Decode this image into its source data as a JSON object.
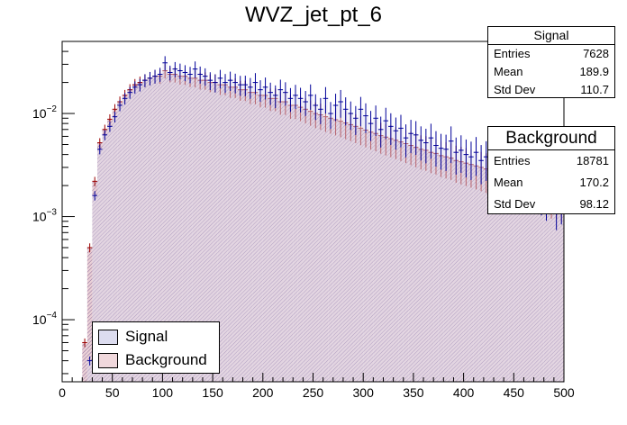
{
  "chart_data": {
    "type": "histogram",
    "title": "WVZ_jet_pt_6",
    "xlabel": "",
    "ylabel": "",
    "xlim": [
      0,
      500
    ],
    "ylim": [
      2.5e-05,
      0.05
    ],
    "yscale": "log",
    "x_ticks": [
      "0",
      "50",
      "100",
      "150",
      "200",
      "250",
      "300",
      "350",
      "400",
      "450",
      "500"
    ],
    "y_ticks": [
      {
        "value": 0.0001,
        "base": "10",
        "exp": "−4"
      },
      {
        "value": 0.001,
        "base": "10",
        "exp": "−3"
      },
      {
        "value": 0.01,
        "base": "10",
        "exp": "−2"
      }
    ],
    "bin_width": 5,
    "bin_start": 0,
    "series": [
      {
        "name": "Signal",
        "color": "#000099",
        "fill": "#dcdcef",
        "values": [
          0,
          0,
          0,
          0,
          0,
          4e-05,
          0.0016,
          0.0045,
          0.0062,
          0.0075,
          0.0093,
          0.012,
          0.014,
          0.016,
          0.018,
          0.019,
          0.021,
          0.022,
          0.023,
          0.024,
          0.031,
          0.025,
          0.027,
          0.026,
          0.025,
          0.024,
          0.027,
          0.024,
          0.023,
          0.021,
          0.02,
          0.022,
          0.02,
          0.021,
          0.02,
          0.019,
          0.019,
          0.018,
          0.02,
          0.017,
          0.018,
          0.016,
          0.015,
          0.017,
          0.016,
          0.014,
          0.015,
          0.014,
          0.013,
          0.015,
          0.012,
          0.011,
          0.014,
          0.01,
          0.012,
          0.013,
          0.011,
          0.01,
          0.009,
          0.011,
          0.0095,
          0.008,
          0.009,
          0.007,
          0.0085,
          0.0075,
          0.0068,
          0.0072,
          0.0058,
          0.0064,
          0.0062,
          0.0055,
          0.0052,
          0.0058,
          0.0049,
          0.0046,
          0.0045,
          0.0054,
          0.0042,
          0.0044,
          0.004,
          0.0038,
          0.0042,
          0.0035,
          0.0038,
          0.0032,
          0.0034,
          0.003,
          0.0032,
          0.0028,
          0.0026,
          0.0024,
          0.0029,
          0.0022,
          0.0024,
          0.0019,
          0.0017,
          0.0023,
          0.0014,
          0.0016
        ]
      },
      {
        "name": "Background",
        "color": "#990000",
        "fill": "#f0d8dc",
        "values": [
          0,
          0,
          0,
          0,
          6e-05,
          0.0005,
          0.0022,
          0.0052,
          0.007,
          0.0088,
          0.011,
          0.013,
          0.015,
          0.017,
          0.019,
          0.02,
          0.021,
          0.022,
          0.023,
          0.023,
          0.026,
          0.024,
          0.024,
          0.023,
          0.023,
          0.022,
          0.022,
          0.021,
          0.021,
          0.02,
          0.02,
          0.019,
          0.019,
          0.018,
          0.018,
          0.017,
          0.017,
          0.016,
          0.016,
          0.015,
          0.015,
          0.014,
          0.014,
          0.013,
          0.013,
          0.012,
          0.012,
          0.0115,
          0.011,
          0.0105,
          0.01,
          0.0097,
          0.0093,
          0.009,
          0.0087,
          0.0084,
          0.0081,
          0.0078,
          0.0075,
          0.0072,
          0.0069,
          0.0066,
          0.0064,
          0.0061,
          0.0059,
          0.0057,
          0.0055,
          0.0053,
          0.0051,
          0.0049,
          0.0047,
          0.0045,
          0.0044,
          0.0042,
          0.0041,
          0.0039,
          0.0038,
          0.0037,
          0.0035,
          0.0034,
          0.0033,
          0.0032,
          0.0031,
          0.003,
          0.0029,
          0.0028,
          0.0027,
          0.0026,
          0.0025,
          0.0024,
          0.0023,
          0.0023,
          0.0022,
          0.0021,
          0.002,
          0.002,
          0.0019,
          0.0018,
          0.0018,
          0.0017
        ]
      }
    ],
    "legend": [
      {
        "label": "Signal",
        "fill": "#dcdcef"
      },
      {
        "label": "Background",
        "fill": "#f0d8dc"
      }
    ],
    "legend_position": "bottom-left"
  },
  "stats_signal": {
    "title": "Signal",
    "entries_label": "Entries",
    "entries": "7628",
    "mean_label": "Mean",
    "mean": "189.9",
    "std_label": "Std Dev",
    "std": "110.7"
  },
  "stats_background": {
    "title": "Background",
    "entries_label": "Entries",
    "entries": "18781",
    "mean_label": "Mean",
    "mean": "170.2",
    "std_label": "Std Dev",
    "std": "98.12"
  }
}
